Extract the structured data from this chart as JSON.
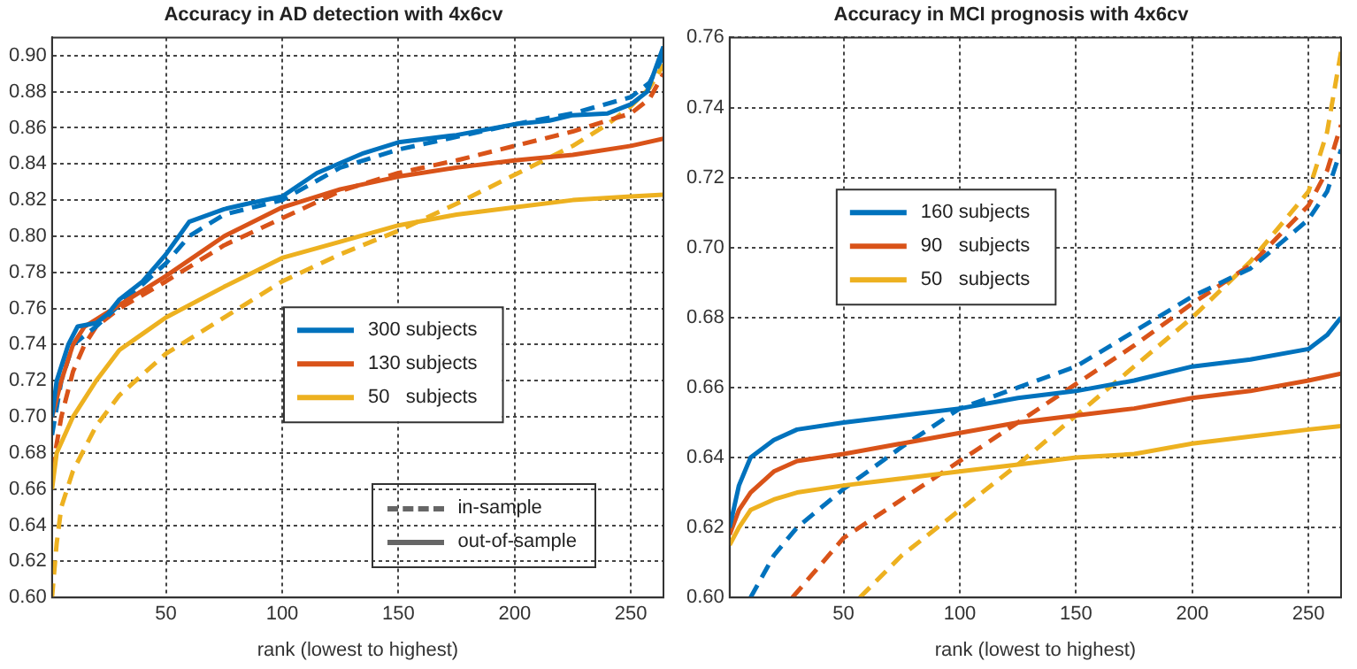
{
  "chart_data": [
    {
      "type": "line",
      "title": "Accuracy in AD detection with 4x6cv",
      "xlabel": "rank (lowest to highest)",
      "xlim": [
        1,
        264
      ],
      "xticks": [
        50,
        100,
        150,
        200,
        250
      ],
      "ylim": [
        0.6,
        0.91
      ],
      "yticks": [
        {
          "value": 0.6,
          "label": "0.60"
        },
        0.62,
        0.64,
        0.66,
        0.68,
        {
          "value": 0.7,
          "label": "0.70"
        },
        0.72,
        0.74,
        0.76,
        0.78,
        {
          "value": 0.8,
          "label": "0.80"
        },
        0.82,
        0.84,
        0.86,
        0.88,
        {
          "value": 0.9,
          "label": "0.90"
        }
      ],
      "grid": true,
      "legend": "right",
      "marker": "none",
      "annotations": [
        "in-sample",
        "out-of-sample"
      ],
      "series": [
        {
          "name": "300 subjects",
          "color": "#0072bd",
          "line_style": "solid",
          "x": [
            1,
            3,
            8,
            12,
            20,
            25,
            30,
            40,
            50,
            60,
            75,
            85,
            100,
            115,
            135,
            150,
            175,
            200,
            215,
            225,
            240,
            250,
            257,
            264
          ],
          "values": [
            0.7,
            0.72,
            0.74,
            0.75,
            0.752,
            0.757,
            0.765,
            0.775,
            0.79,
            0.808,
            0.815,
            0.818,
            0.822,
            0.835,
            0.846,
            0.852,
            0.856,
            0.862,
            0.864,
            0.867,
            0.868,
            0.873,
            0.88,
            0.905
          ]
        },
        {
          "name": "130 subjects",
          "color": "#d95319",
          "line_style": "solid",
          "x": [
            1,
            5,
            10,
            15,
            30,
            50,
            75,
            100,
            125,
            150,
            175,
            200,
            225,
            250,
            264
          ],
          "values": [
            0.7,
            0.72,
            0.74,
            0.75,
            0.762,
            0.778,
            0.8,
            0.816,
            0.826,
            0.833,
            0.838,
            0.842,
            0.845,
            0.85,
            0.854
          ]
        },
        {
          "name": "50   subjects",
          "color": "#edb120",
          "line_style": "solid",
          "x": [
            1,
            3,
            10,
            20,
            30,
            40,
            50,
            75,
            100,
            125,
            150,
            175,
            200,
            225,
            250,
            264
          ],
          "values": [
            0.66,
            0.68,
            0.7,
            0.72,
            0.737,
            0.746,
            0.755,
            0.772,
            0.788,
            0.797,
            0.806,
            0.812,
            0.816,
            0.82,
            0.822,
            0.823
          ]
        },
        {
          "color": "#0072bd",
          "line_style": "dashed",
          "x": [
            1,
            5,
            10,
            20,
            30,
            50,
            60,
            75,
            100,
            125,
            150,
            200,
            225,
            250,
            258,
            264
          ],
          "values": [
            0.69,
            0.72,
            0.74,
            0.75,
            0.762,
            0.785,
            0.8,
            0.812,
            0.82,
            0.838,
            0.848,
            0.862,
            0.868,
            0.877,
            0.885,
            0.9
          ]
        },
        {
          "color": "#d95319",
          "line_style": "dashed",
          "x": [
            1,
            5,
            10,
            15,
            20,
            30,
            50,
            75,
            100,
            125,
            150,
            175,
            200,
            225,
            250,
            258,
            264
          ],
          "values": [
            0.67,
            0.7,
            0.725,
            0.74,
            0.75,
            0.76,
            0.775,
            0.795,
            0.81,
            0.825,
            0.835,
            0.842,
            0.85,
            0.858,
            0.868,
            0.876,
            0.89
          ]
        },
        {
          "color": "#edb120",
          "line_style": "dashed",
          "x": [
            1,
            3,
            5,
            10,
            20,
            30,
            50,
            75,
            100,
            125,
            150,
            175,
            200,
            225,
            240,
            250,
            258,
            264
          ],
          "values": [
            0.6,
            0.63,
            0.65,
            0.67,
            0.695,
            0.712,
            0.735,
            0.755,
            0.775,
            0.79,
            0.803,
            0.818,
            0.834,
            0.85,
            0.862,
            0.872,
            0.882,
            0.895
          ]
        }
      ]
    },
    {
      "type": "line",
      "title": "Accuracy in MCI prognosis with 4x6cv",
      "xlabel": "rank (lowest to highest)",
      "xlim": [
        1,
        264
      ],
      "xticks": [
        50,
        100,
        150,
        200,
        250
      ],
      "ylim": [
        0.6,
        0.76
      ],
      "yticks": [
        {
          "value": 0.6,
          "label": "0.60"
        },
        0.62,
        0.64,
        0.66,
        0.68,
        {
          "value": 0.7,
          "label": "0.70"
        },
        0.72,
        0.74,
        0.76
      ],
      "grid": true,
      "legend": "left",
      "marker": "none",
      "series": [
        {
          "name": "160 subjects",
          "color": "#0072bd",
          "line_style": "solid",
          "x": [
            1,
            5,
            10,
            20,
            30,
            50,
            75,
            100,
            125,
            150,
            175,
            200,
            225,
            250,
            258,
            264
          ],
          "values": [
            0.62,
            0.632,
            0.64,
            0.645,
            0.648,
            0.65,
            0.652,
            0.654,
            0.657,
            0.659,
            0.662,
            0.666,
            0.668,
            0.671,
            0.675,
            0.68
          ]
        },
        {
          "name": "90   subjects",
          "color": "#d95319",
          "line_style": "solid",
          "x": [
            1,
            5,
            10,
            20,
            30,
            50,
            75,
            100,
            125,
            150,
            175,
            200,
            225,
            250,
            264
          ],
          "values": [
            0.618,
            0.625,
            0.63,
            0.636,
            0.639,
            0.641,
            0.644,
            0.647,
            0.65,
            0.652,
            0.654,
            0.657,
            0.659,
            0.662,
            0.664
          ]
        },
        {
          "name": "50   subjects",
          "color": "#edb120",
          "line_style": "solid",
          "x": [
            1,
            5,
            10,
            20,
            30,
            50,
            75,
            100,
            125,
            150,
            175,
            200,
            225,
            250,
            264
          ],
          "values": [
            0.615,
            0.62,
            0.625,
            0.628,
            0.63,
            0.632,
            0.634,
            0.636,
            0.638,
            0.64,
            0.641,
            0.644,
            0.646,
            0.648,
            0.649
          ]
        },
        {
          "color": "#0072bd",
          "line_style": "dashed",
          "x": [
            10,
            20,
            30,
            50,
            75,
            100,
            125,
            150,
            175,
            200,
            225,
            250,
            258,
            264
          ],
          "values": [
            0.6,
            0.612,
            0.62,
            0.631,
            0.643,
            0.654,
            0.66,
            0.666,
            0.676,
            0.686,
            0.694,
            0.708,
            0.716,
            0.728
          ]
        },
        {
          "color": "#d95319",
          "line_style": "dashed",
          "x": [
            28,
            50,
            75,
            100,
            125,
            150,
            175,
            200,
            225,
            250,
            258,
            264
          ],
          "values": [
            0.6,
            0.617,
            0.628,
            0.639,
            0.65,
            0.661,
            0.672,
            0.684,
            0.695,
            0.712,
            0.722,
            0.735
          ]
        },
        {
          "color": "#edb120",
          "line_style": "dashed",
          "x": [
            57,
            75,
            100,
            125,
            150,
            175,
            200,
            225,
            250,
            258,
            264
          ],
          "values": [
            0.6,
            0.612,
            0.625,
            0.638,
            0.652,
            0.666,
            0.68,
            0.696,
            0.716,
            0.733,
            0.756
          ]
        }
      ]
    }
  ]
}
